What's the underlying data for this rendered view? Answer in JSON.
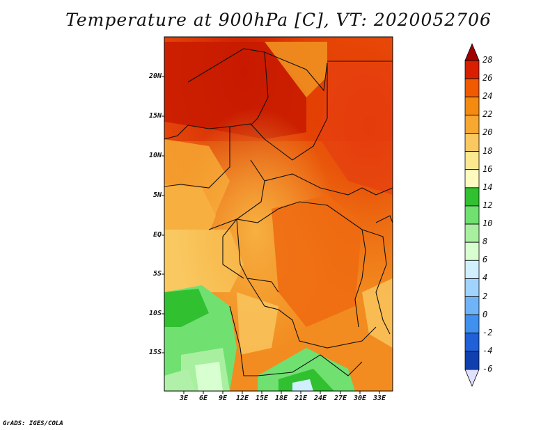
{
  "title": "Temperature at 900hPa [C], VT: 2020052706",
  "footer": "GrADS: IGES/COLA",
  "map": {
    "lat_labels": [
      "20N",
      "15N",
      "10N",
      "5N",
      "EQ",
      "5S",
      "10S",
      "15S"
    ],
    "lon_labels": [
      "3E",
      "6E",
      "9E",
      "12E",
      "15E",
      "18E",
      "21E",
      "24E",
      "27E",
      "30E",
      "33E"
    ]
  },
  "colorbar": {
    "labels": [
      "28",
      "26",
      "24",
      "22",
      "20",
      "18",
      "16",
      "14",
      "12",
      "10",
      "8",
      "6",
      "4",
      "2",
      "0",
      "-2",
      "-4",
      "-6"
    ],
    "colors": [
      "#a00000",
      "#d82000",
      "#f05a00",
      "#f58a10",
      "#f7a830",
      "#f9c860",
      "#fde890",
      "#fffbc0",
      "#30c030",
      "#70e070",
      "#a8f0a0",
      "#d8ffd0",
      "#d0f0ff",
      "#a0d4ff",
      "#70b4f8",
      "#4090f0",
      "#2060d8",
      "#1040b0",
      "#000060",
      "#e0e0ff"
    ]
  }
}
